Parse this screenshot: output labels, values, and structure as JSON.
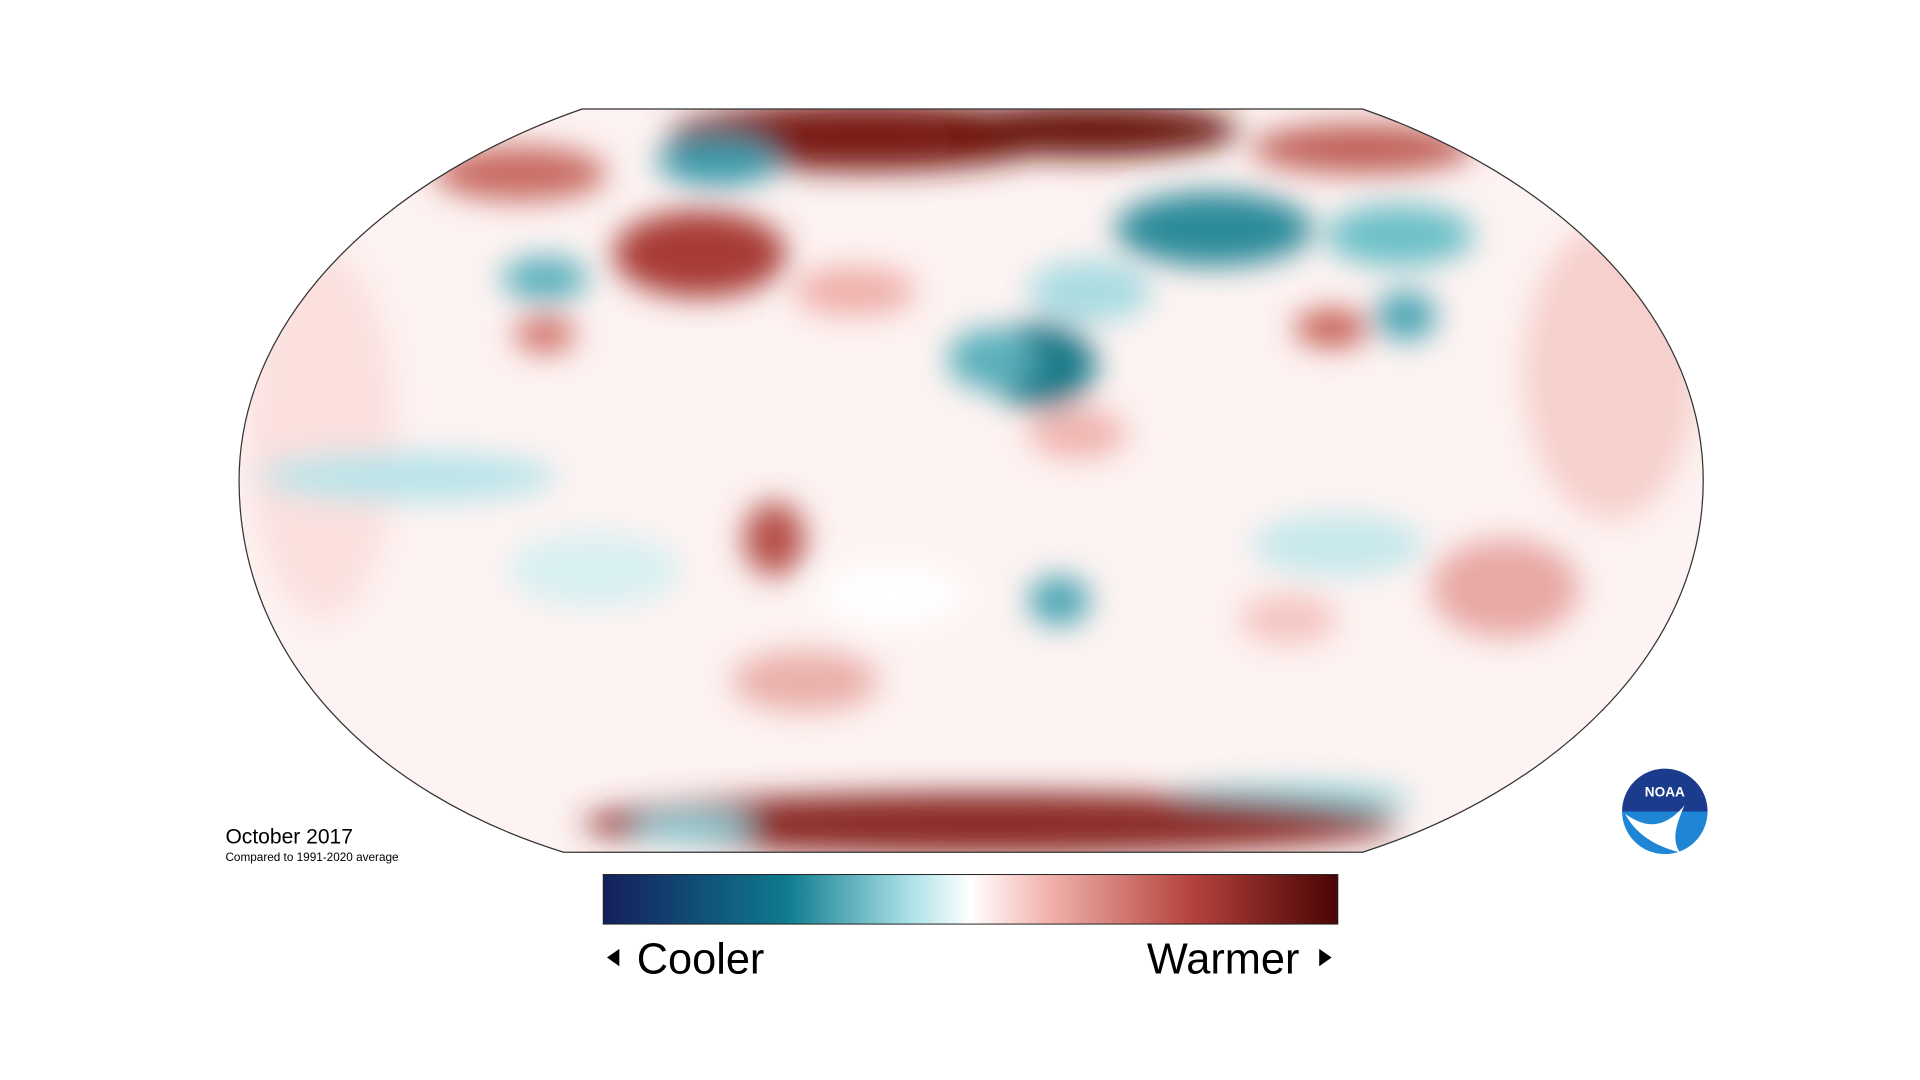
{
  "title": "October 2017",
  "subtitle": "Compared to 1991-2020 average",
  "legend": {
    "low": "Cooler",
    "high": "Warmer"
  },
  "logo": "NOAA"
}
